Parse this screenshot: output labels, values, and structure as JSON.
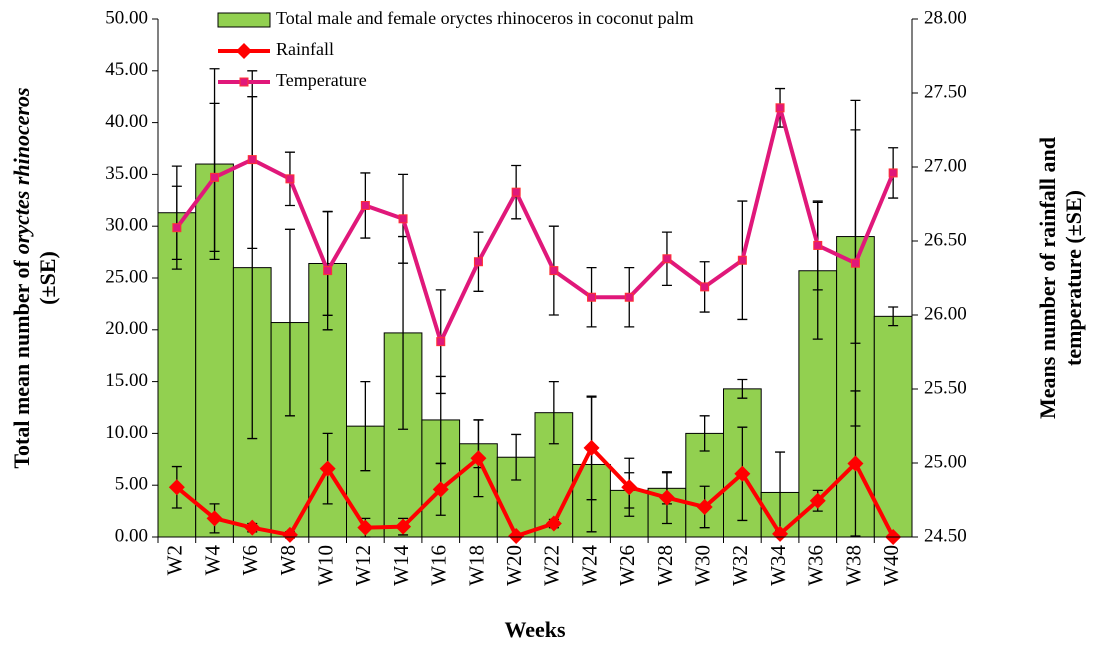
{
  "chart_data": {
    "type": "bar-line",
    "x_label": "Weeks",
    "y_label": [
      "Total mean number of",
      "oryctes rhinoceros",
      "(±SE)"
    ],
    "y2_label": [
      "Means number of rainfall and",
      "temperature (±SE)"
    ],
    "categories": [
      "W2",
      "W4",
      "W6",
      "W8",
      "W10",
      "W12",
      "W14",
      "W16",
      "W18",
      "W20",
      "W22",
      "W24",
      "W26",
      "W28",
      "W30",
      "W32",
      "W34",
      "W36",
      "W38",
      "W40"
    ],
    "series": [
      {
        "name": "Total male and female oryctes rhinoceros in coconut palm",
        "kind": "bar",
        "color": "#92d050",
        "values": [
          31.3,
          36.0,
          26.0,
          20.7,
          26.4,
          10.7,
          19.7,
          11.3,
          9.0,
          7.7,
          12.0,
          7.0,
          4.5,
          4.7,
          10.0,
          14.3,
          4.3,
          25.7,
          29.0,
          21.3
        ],
        "errors": [
          4.5,
          9.2,
          16.5,
          9.0,
          5.0,
          4.3,
          9.3,
          4.2,
          2.3,
          2.2,
          3.0,
          6.5,
          1.7,
          1.5,
          1.7,
          0.9,
          3.9,
          6.6,
          10.3,
          0.9
        ]
      },
      {
        "name": "Rainfall",
        "kind": "line",
        "marker": "diamond",
        "color": "#ff0000",
        "values": [
          4.8,
          1.8,
          0.9,
          0.2,
          6.6,
          0.9,
          1.0,
          4.6,
          7.6,
          0.1,
          1.3,
          8.6,
          4.8,
          3.8,
          2.9,
          6.1,
          0.3,
          3.5,
          7.1,
          0.0
        ],
        "errors": [
          2.0,
          1.4,
          0.4,
          0.3,
          3.4,
          0.9,
          0.8,
          2.5,
          3.7,
          0.2,
          0.4,
          5.0,
          2.8,
          2.5,
          2.0,
          4.5,
          0.3,
          1.0,
          7.0,
          0.2
        ]
      },
      {
        "name": "Temperature",
        "kind": "line",
        "marker": "square",
        "color": "#e0187a",
        "axis": "y2",
        "values": [
          26.59,
          26.93,
          27.05,
          26.92,
          26.3,
          26.74,
          26.65,
          25.82,
          26.36,
          26.83,
          26.3,
          26.12,
          26.12,
          26.38,
          26.19,
          26.37,
          27.4,
          26.47,
          26.35,
          26.96
        ],
        "errors": [
          0.28,
          0.5,
          0.6,
          0.18,
          0.4,
          0.22,
          0.3,
          0.35,
          0.2,
          0.18,
          0.3,
          0.2,
          0.2,
          0.18,
          0.17,
          0.4,
          0.13,
          0.3,
          1.1,
          0.17
        ]
      }
    ],
    "ylim": [
      0,
      50
    ],
    "yticks": [
      {
        "value": 0,
        "label": "0.00"
      },
      {
        "value": 5,
        "label": "5.00"
      },
      {
        "value": 10,
        "label": "10.00"
      },
      {
        "value": 15,
        "label": "15.00"
      },
      {
        "value": 20,
        "label": "20.00"
      },
      {
        "value": 25,
        "label": "25.00"
      },
      {
        "value": 30,
        "label": "30.00"
      },
      {
        "value": 35,
        "label": "35.00"
      },
      {
        "value": 40,
        "label": "40.00"
      },
      {
        "value": 45,
        "label": "45.00"
      },
      {
        "value": 50,
        "label": "50.00"
      }
    ],
    "y2lim": [
      24.5,
      28
    ],
    "y2ticks": [
      {
        "value": 24.5,
        "label": "24.50"
      },
      {
        "value": 25,
        "label": "25.00"
      },
      {
        "value": 25.5,
        "label": "25.50"
      },
      {
        "value": 26,
        "label": "26.00"
      },
      {
        "value": 26.5,
        "label": "26.50"
      },
      {
        "value": 27,
        "label": "27.00"
      },
      {
        "value": 27.5,
        "label": "27.50"
      },
      {
        "value": 28,
        "label": "28.00"
      }
    ],
    "legend": "top"
  }
}
